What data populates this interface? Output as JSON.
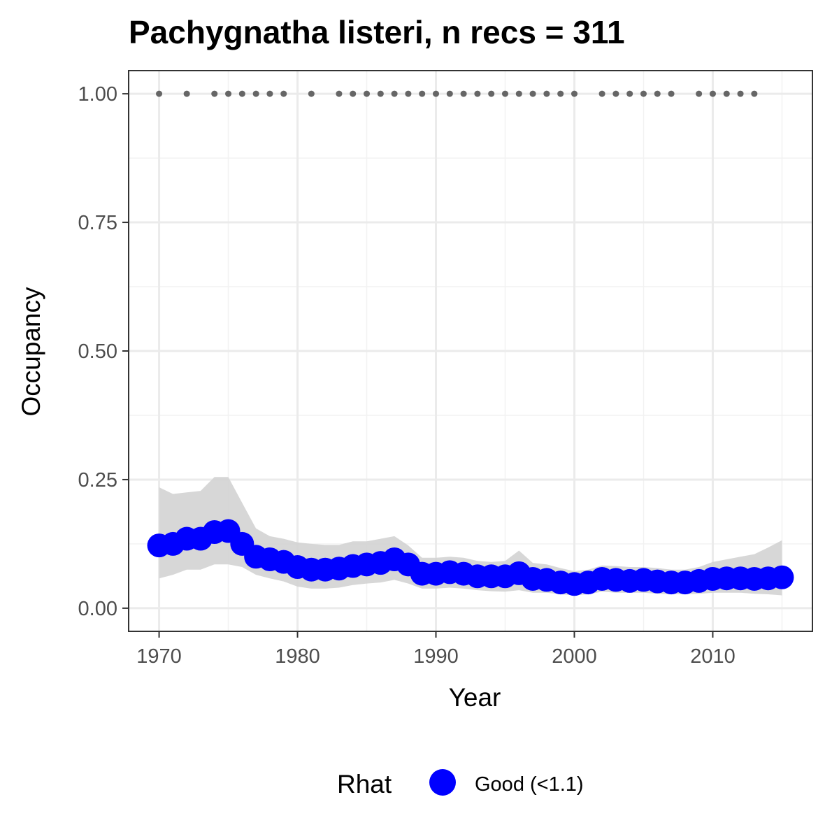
{
  "chart_data": {
    "type": "line",
    "title": "Pachygnatha listeri, n recs = 311",
    "xlabel": "Year",
    "ylabel": "Occupancy",
    "xlim": [
      1967.8,
      2017.2
    ],
    "ylim": [
      -0.045,
      1.045
    ],
    "x_ticks": [
      1970,
      1980,
      1990,
      2000,
      2010
    ],
    "x_tick_labels": [
      "1970",
      "1980",
      "1990",
      "2000",
      "2010"
    ],
    "y_ticks": [
      0,
      0.25,
      0.5,
      0.75,
      1.0
    ],
    "y_tick_labels": [
      "0.00",
      "0.25",
      "0.50",
      "0.75",
      "1.00"
    ],
    "grid": true,
    "legend_position": "bottom",
    "legend": {
      "title": "Rhat",
      "entries": [
        {
          "label": "Good (<1.1)",
          "color": "#0000ff"
        }
      ]
    },
    "colors": {
      "points": "#0000ff",
      "ribbon": "#d3d3d3",
      "records": "#666666"
    },
    "series": [
      {
        "x": [
          1970,
          1971,
          1972,
          1973,
          1974,
          1975,
          1976,
          1977,
          1978,
          1979,
          1980,
          1981,
          1982,
          1983,
          1984,
          1985,
          1986,
          1987,
          1988,
          1989,
          1990,
          1991,
          1992,
          1993,
          1994,
          1995,
          1996,
          1997,
          1998,
          1999,
          2000,
          2001,
          2002,
          2003,
          2004,
          2005,
          2006,
          2007,
          2008,
          2009,
          2010,
          2011,
          2012,
          2013,
          2014,
          2015
        ],
        "y": [
          0.122,
          0.125,
          0.135,
          0.135,
          0.148,
          0.15,
          0.125,
          0.1,
          0.095,
          0.09,
          0.08,
          0.075,
          0.075,
          0.077,
          0.082,
          0.085,
          0.088,
          0.095,
          0.085,
          0.067,
          0.067,
          0.07,
          0.067,
          0.062,
          0.062,
          0.062,
          0.068,
          0.057,
          0.055,
          0.05,
          0.047,
          0.05,
          0.057,
          0.055,
          0.053,
          0.055,
          0.052,
          0.05,
          0.05,
          0.053,
          0.057,
          0.058,
          0.058,
          0.057,
          0.058,
          0.06
        ],
        "lower": [
          0.058,
          0.065,
          0.075,
          0.075,
          0.085,
          0.085,
          0.08,
          0.065,
          0.058,
          0.052,
          0.042,
          0.038,
          0.038,
          0.04,
          0.045,
          0.048,
          0.05,
          0.055,
          0.048,
          0.038,
          0.038,
          0.04,
          0.038,
          0.035,
          0.033,
          0.032,
          0.035,
          0.03,
          0.03,
          0.027,
          0.025,
          0.027,
          0.032,
          0.03,
          0.03,
          0.03,
          0.028,
          0.027,
          0.027,
          0.028,
          0.03,
          0.03,
          0.03,
          0.028,
          0.027,
          0.025
        ],
        "upper": [
          0.235,
          0.222,
          0.225,
          0.228,
          0.255,
          0.255,
          0.205,
          0.155,
          0.14,
          0.135,
          0.128,
          0.125,
          0.123,
          0.123,
          0.13,
          0.13,
          0.135,
          0.14,
          0.122,
          0.098,
          0.098,
          0.1,
          0.098,
          0.092,
          0.09,
          0.092,
          0.112,
          0.088,
          0.085,
          0.078,
          0.072,
          0.075,
          0.083,
          0.082,
          0.08,
          0.08,
          0.078,
          0.075,
          0.075,
          0.08,
          0.09,
          0.095,
          0.1,
          0.105,
          0.118,
          0.132
        ]
      }
    ],
    "record_years": [
      1970,
      1972,
      1974,
      1975,
      1976,
      1977,
      1978,
      1979,
      1981,
      1983,
      1984,
      1985,
      1986,
      1987,
      1988,
      1989,
      1990,
      1991,
      1992,
      1993,
      1994,
      1995,
      1996,
      1997,
      1998,
      1999,
      2000,
      2002,
      2003,
      2004,
      2005,
      2006,
      2007,
      2009,
      2010,
      2011,
      2012,
      2013
    ],
    "record_value": 1.0
  }
}
